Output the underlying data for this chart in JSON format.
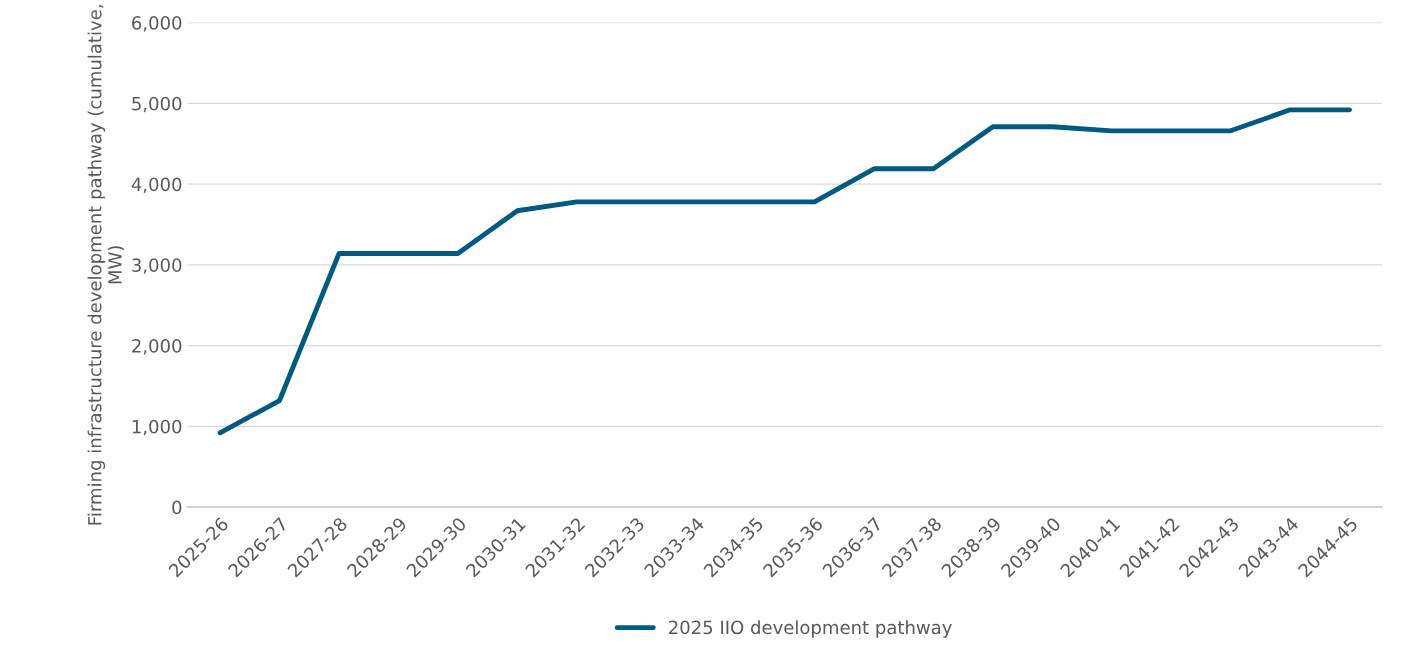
{
  "chart_data": {
    "type": "line",
    "ylabel": "Firming infrastructure development pathway (cumulative, MW)",
    "categories": [
      "2025-26",
      "2026-27",
      "2027-28",
      "2028-29",
      "2029-30",
      "2030-31",
      "2031-32",
      "2032-33",
      "2033-34",
      "2034-35",
      "2035-36",
      "2036-37",
      "2037-38",
      "2038-39",
      "2039-40",
      "2040-41",
      "2041-42",
      "2042-43",
      "2043-44",
      "2044-45"
    ],
    "series": [
      {
        "name": "2025 IIO development pathway",
        "color": "#005a82",
        "values": [
          920,
          1320,
          3140,
          3140,
          3140,
          3670,
          3780,
          3780,
          3780,
          3780,
          3780,
          4190,
          4190,
          4710,
          4710,
          4660,
          4660,
          4660,
          4920,
          4920
        ]
      }
    ],
    "ylim": [
      0,
      6000
    ],
    "yticks": [
      {
        "value": 0,
        "label": "0"
      },
      {
        "value": 1000,
        "label": "1,000"
      },
      {
        "value": 2000,
        "label": "2,000"
      },
      {
        "value": 3000,
        "label": "3,000"
      },
      {
        "value": 4000,
        "label": "4,000"
      },
      {
        "value": 5000,
        "label": "5,000"
      },
      {
        "value": 6000,
        "label": "6,000"
      }
    ],
    "grid": "y",
    "legend": "bottom",
    "marker": "none",
    "line_style": "solid"
  }
}
